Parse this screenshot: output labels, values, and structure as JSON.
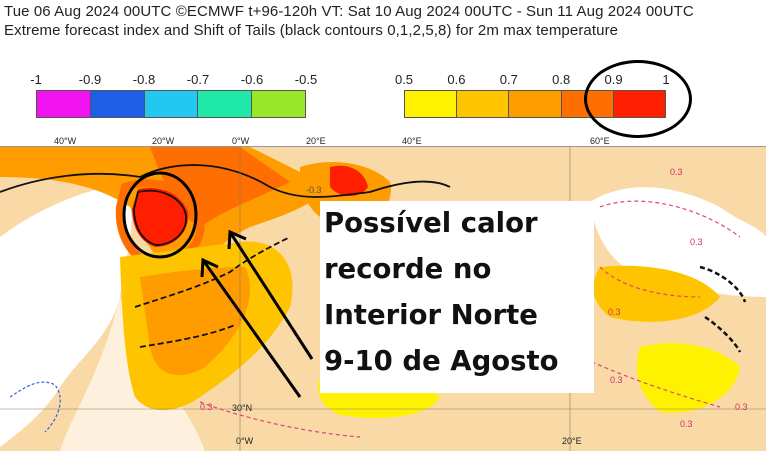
{
  "header": {
    "line1": "Tue 06 Aug 2024 00UTC ©ECMWF t+96-120h  VT: Sat 10 Aug 2024 00UTC - Sun 11 Aug 2024 00UTC",
    "line2": "Extreme forecast index and Shift of Tails (black contours 0,1,2,5,8) for 2m max temperature"
  },
  "legend_negative": {
    "ticks": [
      "-1",
      "-0.9",
      "-0.8",
      "-0.7",
      "-0.6",
      "-0.5"
    ],
    "colors": [
      "#f012f0",
      "#1f5fe8",
      "#22c8f2",
      "#20e8a8",
      "#98e828"
    ]
  },
  "legend_positive": {
    "ticks": [
      "0.5",
      "0.6",
      "0.7",
      "0.8",
      "0.9",
      "1"
    ],
    "colors": [
      "#fff200",
      "#ffc400",
      "#ff9c00",
      "#ff6e00",
      "#ff1e00"
    ]
  },
  "map": {
    "top_longitudes": [
      "40°W",
      "20°W",
      "0°W",
      "20°E",
      "40°E",
      "60°E"
    ],
    "bottom_longitudes": [
      "0°W",
      "20°E"
    ],
    "latitude_label": "30°N",
    "contour_labels": [
      "0.3",
      "-0.3",
      "0.3",
      "0.3",
      "0.3",
      "0.3",
      "0.3",
      "0.3"
    ]
  },
  "annotation": {
    "lines": [
      "Possível calor",
      "recorde no",
      "Interior Norte",
      "9-10 de Agosto"
    ]
  }
}
